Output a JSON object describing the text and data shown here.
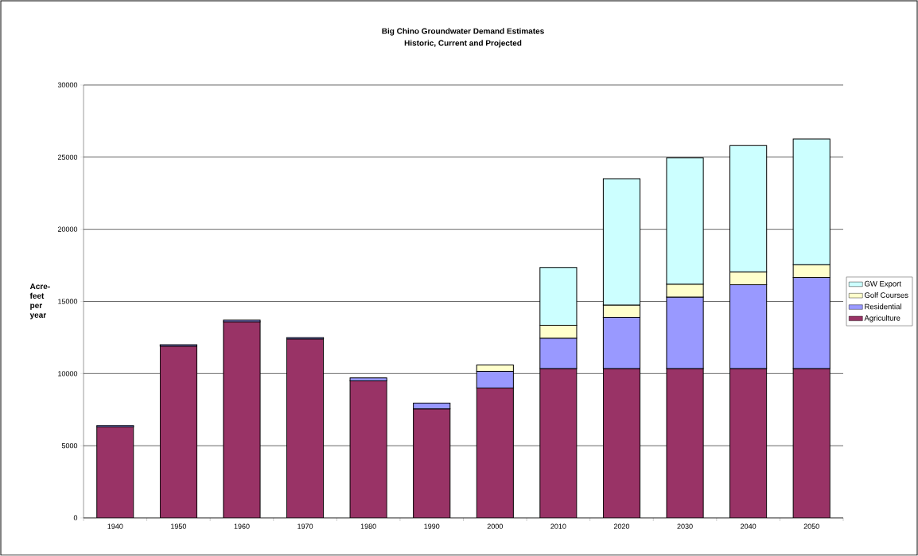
{
  "chart_data": {
    "type": "bar",
    "stacked": true,
    "title": "Big Chino Groundwater Demand Estimates",
    "subtitle": "Historic, Current and Projected",
    "ylabel": "Acre-feet per year",
    "categories": [
      "1940",
      "1950",
      "1960",
      "1970",
      "1980",
      "1990",
      "2000",
      "2010",
      "2020",
      "2030",
      "2040",
      "2050"
    ],
    "series": [
      {
        "name": "Agriculture",
        "color": "#993366",
        "values": [
          6300,
          11900,
          13600,
          12400,
          9500,
          7550,
          9000,
          10350,
          10350,
          10350,
          10350,
          10350
        ]
      },
      {
        "name": "Residential",
        "color": "#9999ff",
        "values": [
          100,
          100,
          100,
          100,
          200,
          400,
          1150,
          2100,
          3550,
          4950,
          5800,
          6300
        ]
      },
      {
        "name": "Golf Courses",
        "color": "#ffffcc",
        "values": [
          null,
          null,
          null,
          null,
          null,
          null,
          450,
          900,
          850,
          900,
          900,
          900
        ]
      },
      {
        "name": "GW Export",
        "color": "#ccffff",
        "values": [
          null,
          null,
          null,
          null,
          null,
          null,
          null,
          4000,
          8750,
          8750,
          8750,
          8700
        ]
      }
    ],
    "ylim": [
      0,
      30000
    ],
    "yticks": [
      0,
      5000,
      10000,
      15000,
      20000,
      25000,
      30000
    ],
    "grid": "y",
    "legend": "right"
  }
}
